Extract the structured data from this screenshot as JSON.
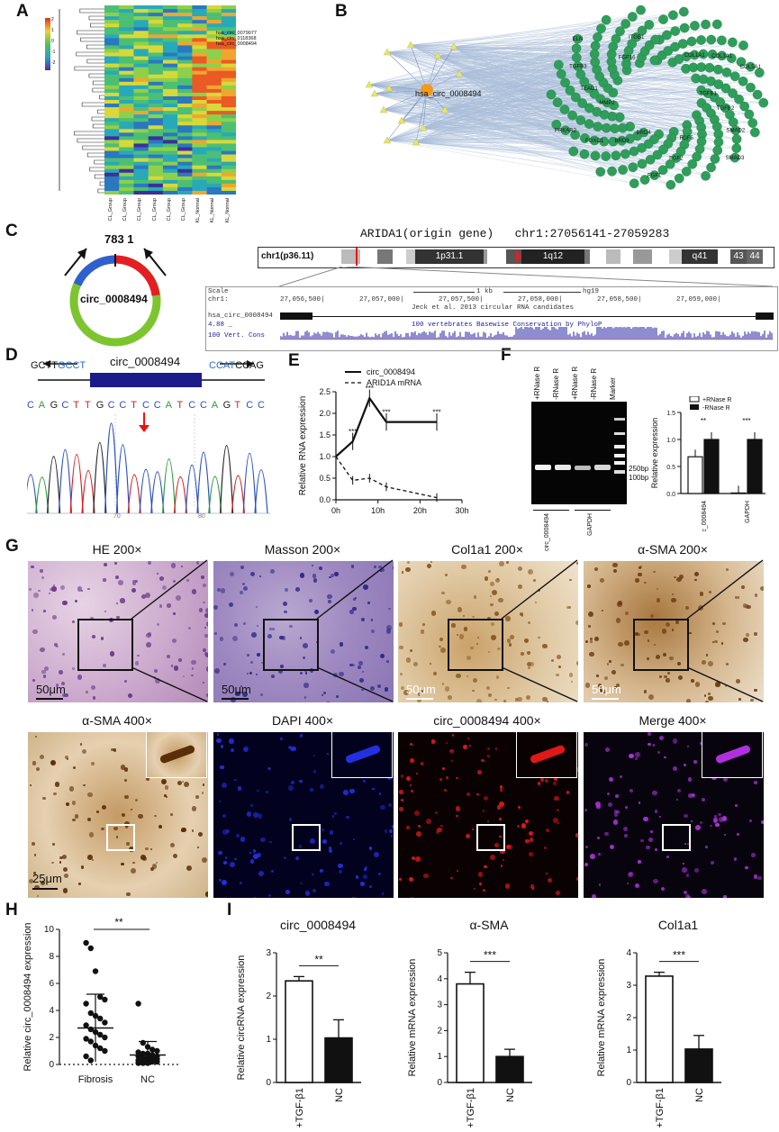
{
  "panels": {
    "A": "A",
    "B": "B",
    "C": "C",
    "D": "D",
    "E": "E",
    "F": "F",
    "G": "G",
    "H": "H",
    "I": "I"
  },
  "heatmap": {
    "highlight_labels": [
      "hsa_circ_0079077",
      "hsa_circ_0118368",
      "hsa_circ_0008494"
    ],
    "samples": [
      "CL_Group",
      "CL_Group",
      "CL_Group",
      "CL_Group",
      "CL_Group",
      "CL_Group",
      "KL_Normal",
      "KL_Normal",
      "KL_Normal"
    ],
    "scale_ticks": [
      "2",
      "1",
      "0",
      "-1",
      "-2"
    ]
  },
  "network": {
    "hub": "hsa_circ_0008494",
    "genes": [
      "COL1A1",
      "COL3A1",
      "COL5A1",
      "TGFB1",
      "TGFB2",
      "SMAD2",
      "SMAD3",
      "FGF5",
      "FGF2",
      "FGF1",
      "BRD4",
      "BRD9",
      "FOXO1",
      "PRKAR2",
      "MMP2",
      "TEAD1",
      "TGFB3",
      "ELN",
      "FGF16",
      "ITGB1"
    ]
  },
  "circ": {
    "name": "circ_0008494",
    "junction": "783 1"
  },
  "genome": {
    "title": "ARIDA1(origin gene)   chr1:27056141-27059283",
    "chrom_label": "chr1(p36.11)",
    "bands": [
      "1p31.1",
      "1q12",
      "q41",
      "43",
      "44"
    ],
    "scale_label": "Scale",
    "chr_label": "chr1:",
    "kb": "1 kb",
    "assembly": "hg19",
    "positions": [
      "27,056,500|",
      "27,057,000|",
      "27,057,500|",
      "27,058,000|",
      "27,058,500|",
      "27,059,000|"
    ],
    "track_note": "Jeck et al. 2013 circular RNA candidates",
    "track_name": "hsa_circ_0008494",
    "cons_note": "100 vertebrates Basewise Conservation by PhyloP",
    "cons_label": "100 Vert. Cons",
    "cons_val": "4.88 _"
  },
  "sanger": {
    "left_primer_black": "GCTT",
    "left_primer_blue": "GCCT",
    "name": "circ_0008494",
    "right_primer_blue": "CCAT",
    "right_primer_black": "CCAG",
    "bases": [
      "C",
      "A",
      "G",
      "C",
      "T",
      "T",
      "G",
      "C",
      "C",
      "T",
      "C",
      "C",
      "A",
      "T",
      "C",
      "C",
      "A",
      "G",
      "T",
      "C",
      "C"
    ],
    "ticks": [
      "70",
      "80"
    ]
  },
  "chart_data": [
    {
      "panel": "E",
      "type": "line",
      "x": [
        0,
        4,
        8,
        12,
        24
      ],
      "series": [
        {
          "name": "circ_0008494",
          "values": [
            1.0,
            1.35,
            2.35,
            1.8,
            1.8
          ]
        },
        {
          "name": "ARID1A  mRNA",
          "values": [
            1.0,
            0.45,
            0.5,
            0.3,
            0.05
          ]
        }
      ],
      "xlabel": "",
      "ylabel": "Relative RNA expression",
      "xticks": [
        "0h",
        "10h",
        "20h",
        "30h"
      ],
      "yticks": [
        "0.0",
        "0.5",
        "1.0",
        "1.5",
        "2.0",
        "2.5"
      ],
      "ylim": [
        0,
        2.5
      ],
      "sig": [
        "***",
        "***",
        "***",
        "***"
      ]
    },
    {
      "panel": "F",
      "type": "bar",
      "categories": [
        "circ_0008494",
        "GAPDH"
      ],
      "series": [
        {
          "name": "+RNase R",
          "values": [
            0.68,
            0.01
          ]
        },
        {
          "name": "-RNase R",
          "values": [
            1.0,
            1.0
          ]
        }
      ],
      "ylabel": "Relative expression",
      "yticks": [
        "0.0",
        "0.5",
        "1.0",
        "1.5"
      ],
      "ylim": [
        0,
        1.5
      ],
      "sig": [
        "**",
        "***"
      ]
    },
    {
      "panel": "H",
      "type": "scatter",
      "categories": [
        "Fibrosis",
        "NC"
      ],
      "ylabel": "Relative circ_0008494 expression",
      "yticks": [
        "0",
        "2",
        "4",
        "6",
        "8",
        "10"
      ],
      "ylim": [
        0,
        10
      ],
      "means": [
        2.7,
        0.7
      ],
      "sig": "**"
    },
    {
      "panel": "I1",
      "type": "bar",
      "title": "circ_0008494",
      "categories": [
        "+TGF-β1",
        "NC"
      ],
      "values": [
        2.35,
        1.03
      ],
      "errors": [
        0.1,
        0.42
      ],
      "ylabel": "Relative circRNA expression",
      "yticks": [
        "0",
        "1",
        "2",
        "3"
      ],
      "ylim": [
        0,
        3
      ],
      "sig": "**"
    },
    {
      "panel": "I2",
      "type": "bar",
      "title": "α-SMA",
      "categories": [
        "+TGF-β1",
        "NC"
      ],
      "values": [
        3.8,
        1.0
      ],
      "errors": [
        0.45,
        0.28
      ],
      "ylabel": "Relative mRNA expression",
      "yticks": [
        "0",
        "1",
        "2",
        "3",
        "4",
        "5"
      ],
      "ylim": [
        0,
        5
      ],
      "sig": "***"
    },
    {
      "panel": "I3",
      "type": "bar",
      "title": "Col1a1",
      "categories": [
        "+TGF-β1",
        "NC"
      ],
      "values": [
        3.28,
        1.03
      ],
      "errors": [
        0.12,
        0.42
      ],
      "ylabel": "Relative mRNA expression",
      "yticks": [
        "0",
        "1",
        "2",
        "3",
        "4"
      ],
      "ylim": [
        0,
        4
      ],
      "sig": "***"
    }
  ],
  "gel": {
    "lanes": [
      "+RNase R",
      "-RNase R",
      "+RNase R",
      "-RNase R",
      "Marker"
    ],
    "markers": [
      "250bp",
      "100bp"
    ],
    "groups": [
      "circ_0008494",
      "GAPDH"
    ]
  },
  "legendF": {
    "plus": "+RNase R",
    "minus": "-RNase R"
  },
  "histology": {
    "row1": [
      "HE 200×",
      "Masson 200×",
      "Col1a1  200×",
      "α-SMA  200×"
    ],
    "row2": [
      "α-SMA  400×",
      "DAPI  400×",
      "circ_0008494   400×",
      "Merge   400×"
    ],
    "scale1": "50μm",
    "scale2": "25μm"
  }
}
